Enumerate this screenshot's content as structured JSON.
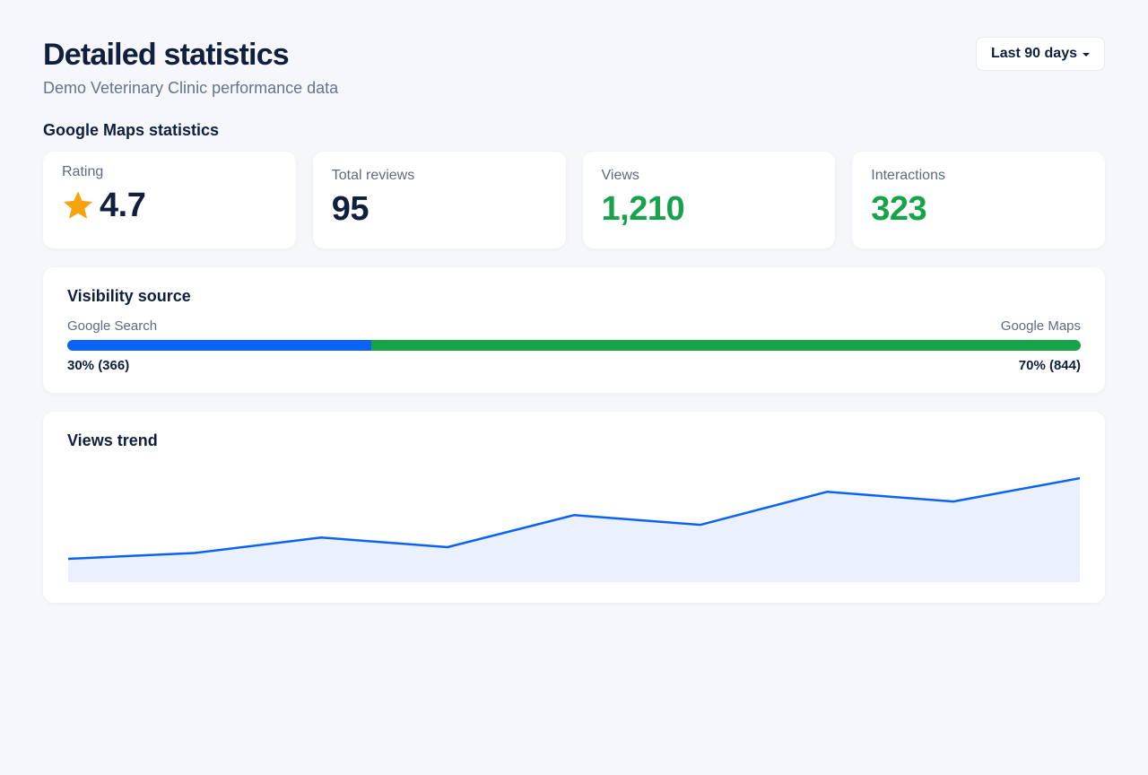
{
  "header": {
    "title": "Detailed statistics",
    "subtitle": "Demo Veterinary Clinic performance data",
    "range_label": "Last 90 days"
  },
  "section_title": "Google Maps statistics",
  "stats": {
    "rating": {
      "label": "Rating",
      "value": "4.7",
      "icon": "star-icon",
      "color": "#f5a40c"
    },
    "total_reviews": {
      "label": "Total reviews",
      "value": "95"
    },
    "views": {
      "label": "Views",
      "value": "1,210",
      "color": "#16a34a"
    },
    "interactions": {
      "label": "Interactions",
      "value": "323",
      "color": "#16a34a"
    }
  },
  "visibility": {
    "title": "Visibility source",
    "search": {
      "label": "Google Search",
      "value_text": "30% (366)",
      "share": 0.3,
      "color": "#0b63f6"
    },
    "maps": {
      "label": "Google Maps",
      "value_text": "70% (844)",
      "share": 0.7,
      "color": "#16a34a"
    }
  },
  "trend": {
    "title": "Views trend"
  },
  "chart_data": {
    "type": "area",
    "title": "Views trend",
    "x": [
      1,
      2,
      3,
      4,
      5,
      6,
      7,
      8,
      9
    ],
    "series": [
      {
        "values": [
          24,
          30,
          46,
          36,
          69,
          59,
          93,
          83,
          107
        ]
      }
    ],
    "ylim": [
      0,
      120
    ],
    "grid": false,
    "line_color": "#0b63f6",
    "fill_color": "#eaf1fd"
  }
}
